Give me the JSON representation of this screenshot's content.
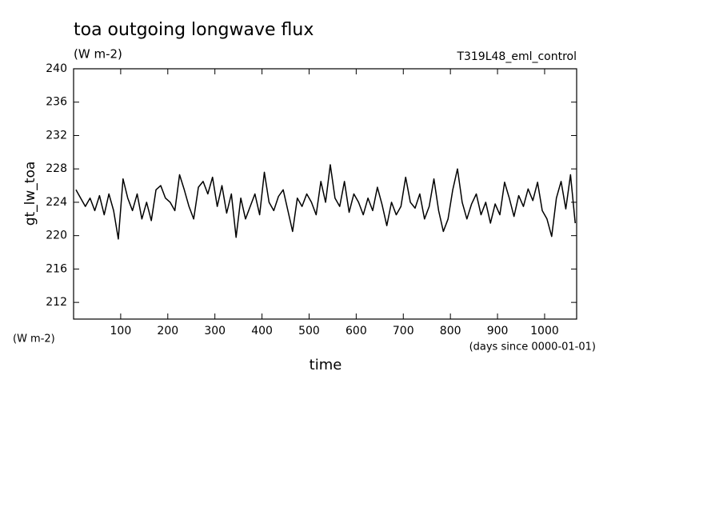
{
  "chart_data": {
    "type": "line",
    "title": "toa outgoing longwave flux",
    "subtitle": "(W m-2)",
    "run_label": "T319L48_eml_control",
    "ylabel": "gt_lw_toa",
    "y_units": "(W m-2)",
    "xlabel": "time",
    "x_units": "(days since 0000-01-01)",
    "color": "#000000",
    "x": [
      5,
      15,
      25,
      35,
      45,
      55,
      65,
      75,
      85,
      95,
      105,
      115,
      125,
      135,
      145,
      155,
      165,
      175,
      185,
      195,
      205,
      215,
      225,
      235,
      245,
      255,
      265,
      275,
      285,
      295,
      305,
      315,
      325,
      335,
      345,
      355,
      365,
      375,
      385,
      395,
      405,
      415,
      425,
      435,
      445,
      455,
      465,
      475,
      485,
      495,
      505,
      515,
      525,
      535,
      545,
      555,
      565,
      575,
      585,
      595,
      605,
      615,
      625,
      635,
      645,
      655,
      665,
      675,
      685,
      695,
      705,
      715,
      725,
      735,
      745,
      755,
      765,
      775,
      785,
      795,
      805,
      815,
      825,
      835,
      845,
      855,
      865,
      875,
      885,
      895,
      905,
      915,
      925,
      935,
      945,
      955,
      965,
      975,
      985,
      995,
      1005,
      1015,
      1025,
      1035,
      1045,
      1055,
      1065
    ],
    "values": [
      225.5,
      224.5,
      223.5,
      224.5,
      223,
      224.8,
      222.5,
      225,
      223,
      219.6,
      226.8,
      224.5,
      223,
      225,
      222,
      224,
      221.8,
      225.5,
      226,
      224.5,
      224,
      223,
      227.3,
      225.5,
      223.5,
      222,
      225.8,
      226.5,
      225,
      227,
      223.5,
      226,
      222.7,
      225,
      219.8,
      224.5,
      222,
      223.5,
      225,
      222.5,
      227.6,
      224,
      223,
      224.7,
      225.5,
      223,
      220.5,
      224.5,
      223.5,
      225,
      224,
      222.5,
      226.5,
      224,
      228.5,
      224.5,
      223.5,
      226.5,
      222.8,
      225,
      224,
      222.5,
      224.5,
      223,
      225.8,
      223.7,
      221.2,
      224,
      222.5,
      223.5,
      227,
      224,
      223.3,
      225,
      222,
      223.5,
      226.8,
      223,
      220.5,
      222,
      225.5,
      228,
      224,
      222,
      223.8,
      225,
      222.5,
      224,
      221.5,
      223.8,
      222.5,
      226.4,
      224.5,
      222.3,
      224.8,
      223.5,
      225.6,
      224.2,
      226.4,
      223,
      222,
      219.9,
      224.5,
      226.5,
      223.2,
      227.3,
      221.5
    ],
    "xlim": [
      0,
      1068
    ],
    "ylim": [
      210,
      240
    ],
    "xticks": [
      100,
      200,
      300,
      400,
      500,
      600,
      700,
      800,
      900,
      1000
    ],
    "yticks": [
      212,
      216,
      220,
      224,
      228,
      232,
      236,
      240
    ]
  }
}
